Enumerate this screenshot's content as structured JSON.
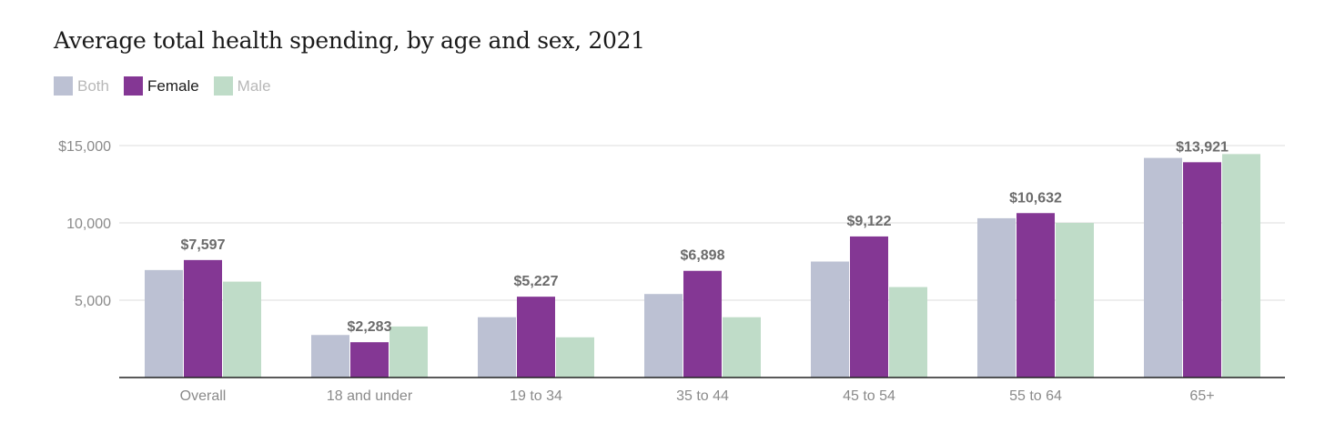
{
  "title": "Average total health spending, by age and sex, 2021",
  "legend": [
    {
      "label": "Both",
      "color": "#bcc1d3",
      "active": false
    },
    {
      "label": "Female",
      "color": "#843794",
      "active": true
    },
    {
      "label": "Male",
      "color": "#bfdcc8",
      "active": false
    }
  ],
  "chart_data": {
    "type": "bar",
    "title": "Average total health spending, by age and sex, 2021",
    "xlabel": "",
    "ylabel": "",
    "categories": [
      "Overall",
      "18 and under",
      "19 to 34",
      "35 to 44",
      "45 to 54",
      "55 to 64",
      "65+"
    ],
    "series": [
      {
        "name": "Both",
        "color": "#bcc1d3",
        "values": [
          6950,
          2750,
          3900,
          5400,
          7500,
          10300,
          14200
        ]
      },
      {
        "name": "Female",
        "color": "#843794",
        "values": [
          7597,
          2283,
          5227,
          6898,
          9122,
          10632,
          13921
        ]
      },
      {
        "name": "Male",
        "color": "#bfdcc8",
        "values": [
          6200,
          3300,
          2600,
          3900,
          5850,
          10000,
          14450
        ]
      }
    ],
    "data_labels": {
      "series": "Female",
      "labels": [
        "$7,597",
        "$2,283",
        "$5,227",
        "$6,898",
        "$9,122",
        "$10,632",
        "$13,921"
      ]
    },
    "y_ticks": [
      {
        "value": 15000,
        "label": "$15,000"
      },
      {
        "value": 10000,
        "label": "10,000"
      },
      {
        "value": 5000,
        "label": "5,000"
      }
    ],
    "ylim": [
      0,
      15000
    ],
    "grid": true,
    "legend_position": "top-left"
  }
}
